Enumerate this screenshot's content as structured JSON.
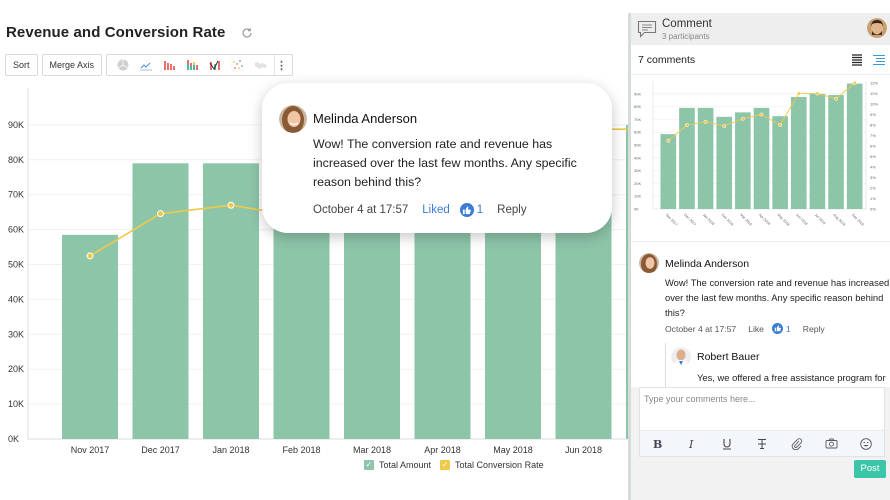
{
  "chart_header": {
    "title": "Revenue and Conversion Rate",
    "refresh_icon": "refresh-icon"
  },
  "toolbar": {
    "sort_label": "Sort",
    "merge_axis_label": "Merge Axis",
    "chart_type_icons": [
      "pie-chart-icon",
      "line-chart-icon",
      "bar-chart-icon",
      "stacked-bar-icon",
      "combo-chart-icon",
      "scatter-chart-icon",
      "map-chart-icon"
    ],
    "more_icon": "more-vertical-icon",
    "more_glyph": "⋮"
  },
  "colors": {
    "bar": "#8dc5a9",
    "line": "#f0c948",
    "accent_blue": "#3a7bd5",
    "post_button": "#3cc5a9"
  },
  "chart_data": {
    "type": "bar",
    "title": "Revenue and Conversion Rate",
    "xlabel": "",
    "ylabel": "",
    "categories": [
      "Nov 2017",
      "Dec 2017",
      "Jan 2018",
      "Feb 2018",
      "Mar 2018",
      "Apr 2018",
      "May 2018",
      "Jun 2018",
      "Jul 2018",
      "Aug 2018",
      "Sep 2018"
    ],
    "series": [
      {
        "name": "Total Amount",
        "type": "bar",
        "axis": "left",
        "values": [
          58500,
          79000,
          79000,
          72000,
          75500,
          79000,
          72500,
          87500,
          90000,
          89000,
          98000
        ]
      },
      {
        "name": "Total Conversion Rate",
        "type": "line",
        "axis": "right",
        "values": [
          6.5,
          8.0,
          8.3,
          7.9,
          8.6,
          9.0,
          8.0,
          11.0,
          11.0,
          10.5,
          12.0
        ]
      }
    ],
    "ylim": [
      0,
      90000
    ],
    "y2lim": [
      0,
      12
    ],
    "yticks": [
      "0K",
      "10K",
      "20K",
      "30K",
      "40K",
      "50K",
      "60K",
      "70K",
      "80K",
      "90K"
    ],
    "y2ticks": [
      "0%",
      "1%",
      "2%",
      "3%",
      "4%",
      "5%",
      "6%",
      "7%",
      "8%",
      "9%",
      "10%",
      "11%",
      "12%"
    ],
    "main_visible_categories": [
      "Nov 2017",
      "Dec 2017",
      "Jan 2018",
      "Feb 2018",
      "Mar 2018",
      "Apr 2018",
      "May 2018",
      "Jun 2018"
    ],
    "legend": [
      "Total Amount",
      "Total Conversion Rate"
    ],
    "legend_position": "bottom",
    "grid": true
  },
  "legend": {
    "items": [
      {
        "label": "Total Amount",
        "color": "#8dc5a9"
      },
      {
        "label": "Total Conversion Rate",
        "color": "#f0c948"
      }
    ],
    "check_glyph": "✓"
  },
  "popup": {
    "author": "Melinda Anderson",
    "text": "Wow! The conversion rate and revenue has increased over the last few months. Any specific reason behind this?",
    "timestamp": "October 4 at 17:57",
    "like_label": "Liked",
    "like_count": "1",
    "reply_label": "Reply"
  },
  "comment_panel": {
    "title": "Comment",
    "participants": "3 participants",
    "count_label": "7 comments",
    "comments": [
      {
        "author": "Melinda Anderson",
        "text": "Wow! The conversion rate and revenue has increased over the last few months. Any specific reason behind this?",
        "timestamp": "October 4 at 17:57",
        "like_label": "Like",
        "like_count": "1",
        "reply_label": "Reply"
      },
      {
        "author": "Robert Bauer",
        "text": "Yes, we offered a free assistance program for our"
      }
    ],
    "composer": {
      "placeholder": "Type your comments here...",
      "value": "",
      "format_icons": [
        "bold-icon",
        "italic-icon",
        "underline-icon",
        "strikethrough-icon",
        "attachment-icon",
        "camera-icon",
        "emoji-icon"
      ]
    },
    "post_label": "Post"
  }
}
